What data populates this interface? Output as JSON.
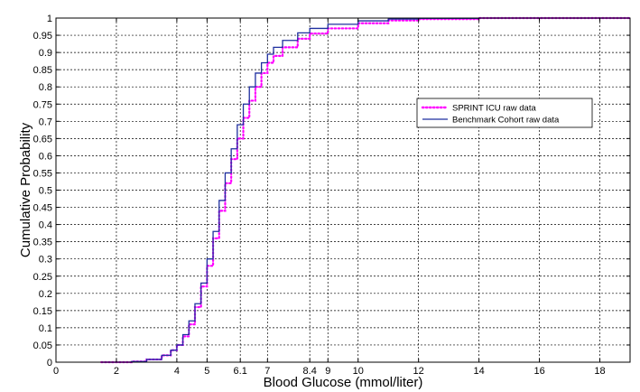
{
  "chart_data": {
    "type": "line",
    "xlabel": "Blood Glucose (mmol/liter)",
    "ylabel": "Cumulative Probability",
    "xlim": [
      0,
      19
    ],
    "ylim": [
      0,
      1
    ],
    "x_ticks": [
      0,
      2,
      4,
      5,
      6.1,
      7,
      8.4,
      9,
      10,
      12,
      14,
      16,
      18
    ],
    "x_tick_labels": [
      "0",
      "2",
      "4",
      "5",
      "6.1",
      "7",
      "8.4",
      "9",
      "10",
      "12",
      "14",
      "16",
      "18"
    ],
    "y_ticks": [
      0,
      0.05,
      0.1,
      0.15,
      0.2,
      0.25,
      0.3,
      0.35,
      0.4,
      0.45,
      0.5,
      0.55,
      0.6,
      0.65,
      0.7,
      0.75,
      0.8,
      0.85,
      0.9,
      0.95,
      1
    ],
    "y_tick_labels": [
      "0",
      "0.05",
      "0.1",
      "0.15",
      "0.2",
      "0.25",
      "0.3",
      "0.35",
      "0.4",
      "0.45",
      "0.5",
      "0.55",
      "0.6",
      "0.65",
      "0.7",
      "0.75",
      "0.8",
      "0.85",
      "0.9",
      "0.95",
      "1"
    ],
    "grid": true,
    "legend_position": "right",
    "series": [
      {
        "name": "SPRINT ICU raw data",
        "color": "#ff00ff",
        "style": "dotted",
        "x": [
          1.5,
          2.5,
          3.0,
          3.5,
          3.8,
          4.0,
          4.2,
          4.4,
          4.6,
          4.8,
          5.0,
          5.2,
          5.4,
          5.6,
          5.8,
          6.0,
          6.2,
          6.4,
          6.6,
          6.8,
          7.0,
          7.2,
          7.5,
          8.0,
          8.4,
          9.0,
          10.0,
          11.0,
          12.0,
          14.0,
          19.0
        ],
        "y": [
          0.0,
          0.002,
          0.008,
          0.02,
          0.035,
          0.05,
          0.075,
          0.11,
          0.16,
          0.22,
          0.28,
          0.36,
          0.44,
          0.52,
          0.59,
          0.65,
          0.71,
          0.76,
          0.8,
          0.84,
          0.87,
          0.89,
          0.915,
          0.94,
          0.955,
          0.97,
          0.985,
          0.993,
          0.997,
          1.0,
          1.0
        ]
      },
      {
        "name": "Benchmark Cohort raw data",
        "color": "#1f2f9f",
        "style": "solid",
        "x": [
          1.5,
          2.5,
          3.0,
          3.5,
          3.8,
          4.0,
          4.2,
          4.4,
          4.6,
          4.8,
          5.0,
          5.2,
          5.4,
          5.6,
          5.8,
          6.0,
          6.2,
          6.4,
          6.6,
          6.8,
          7.0,
          7.2,
          7.5,
          8.0,
          8.4,
          9.0,
          10.0,
          11.0,
          12.0,
          14.0,
          19.0
        ],
        "y": [
          0.0,
          0.002,
          0.008,
          0.02,
          0.035,
          0.05,
          0.08,
          0.12,
          0.17,
          0.23,
          0.3,
          0.38,
          0.47,
          0.55,
          0.62,
          0.69,
          0.75,
          0.8,
          0.84,
          0.87,
          0.895,
          0.915,
          0.935,
          0.957,
          0.97,
          0.982,
          0.992,
          0.997,
          0.999,
          1.0,
          1.0
        ]
      }
    ]
  }
}
